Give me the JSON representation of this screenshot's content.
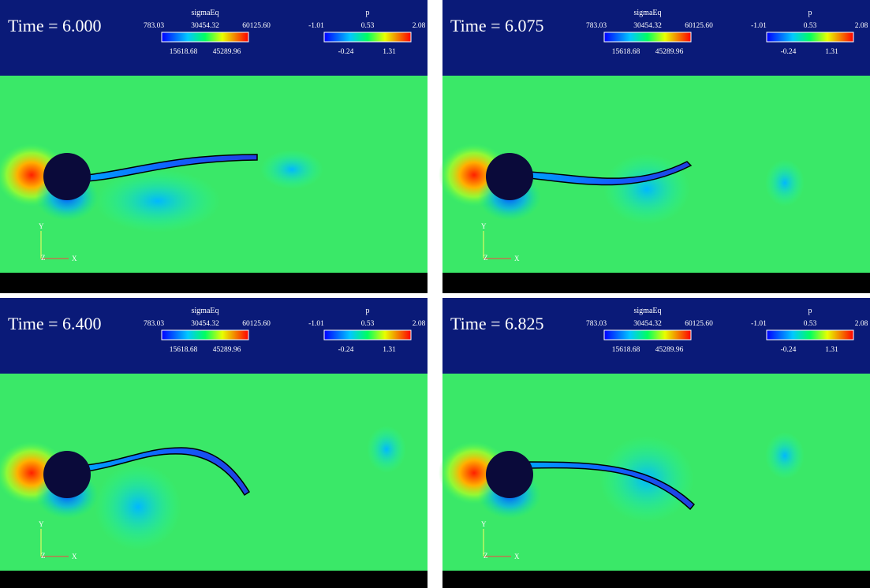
{
  "panels": [
    {
      "time": "Time = 6.000"
    },
    {
      "time": "Time = 6.075"
    },
    {
      "time": "Time = 6.400"
    },
    {
      "time": "Time = 6.825"
    }
  ],
  "legends": [
    {
      "title": "sigmaEq",
      "top_labels": [
        "783.03",
        "30454.32",
        "60125.60"
      ],
      "bottom_labels": [
        "15618.68",
        "45289.96"
      ]
    },
    {
      "title": "p",
      "top_labels": [
        "-1.01",
        "0.53",
        "2.08"
      ],
      "bottom_labels": [
        "-0.24",
        "1.31"
      ]
    }
  ],
  "axes": {
    "y": "Y",
    "z": "Z",
    "x": "X"
  }
}
